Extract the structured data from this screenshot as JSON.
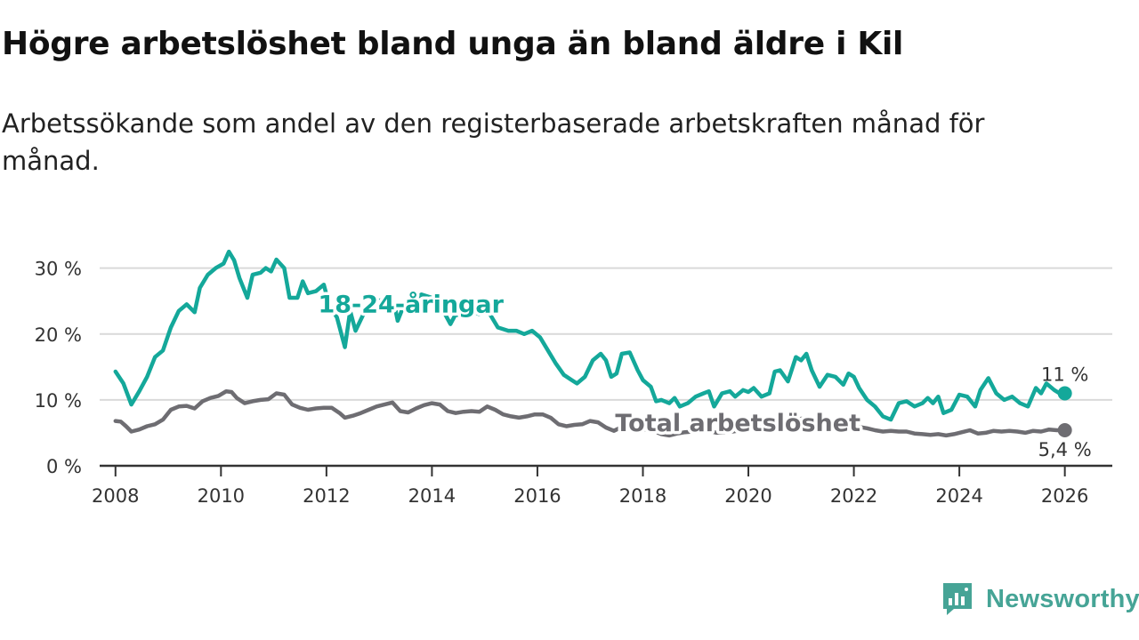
{
  "title": "Högre arbetslöshet bland unga än bland äldre i Kil",
  "subtitle": "Arbetssökande som andel av den registerbaserade arbetskraften månad för månad.",
  "brand": {
    "name": "Newsworthy"
  },
  "colors": {
    "youth": "#14a89a",
    "total": "#6e6d72",
    "grid": "#d9d9d9",
    "axis": "#333333",
    "brand": "#46a496"
  },
  "chart_data": {
    "type": "line",
    "title": "Högre arbetslöshet bland unga än bland äldre i Kil",
    "xlabel": "",
    "ylabel": "",
    "xlim": [
      2007.7,
      2026.9
    ],
    "ylim": [
      0,
      34
    ],
    "x_ticks": [
      {
        "value": 2008,
        "label": "2008"
      },
      {
        "value": 2010,
        "label": "2010"
      },
      {
        "value": 2012,
        "label": "2012"
      },
      {
        "value": 2014,
        "label": "2014"
      },
      {
        "value": 2016,
        "label": "2016"
      },
      {
        "value": 2018,
        "label": "2018"
      },
      {
        "value": 2020,
        "label": "2020"
      },
      {
        "value": 2022,
        "label": "2022"
      },
      {
        "value": 2024,
        "label": "2024"
      },
      {
        "value": 2026,
        "label": "2026"
      }
    ],
    "y_ticks": [
      {
        "value": 0,
        "label": "0 %"
      },
      {
        "value": 10,
        "label": "10 %"
      },
      {
        "value": 20,
        "label": "20 %"
      },
      {
        "value": 30,
        "label": "30 %"
      }
    ],
    "grid": true,
    "series": [
      {
        "name": "18-24-åringar",
        "color": "#14a89a",
        "end_label": "11 %",
        "points": [
          [
            2008.0,
            14.3
          ],
          [
            2008.15,
            12.5
          ],
          [
            2008.3,
            9.3
          ],
          [
            2008.45,
            11.3
          ],
          [
            2008.6,
            13.5
          ],
          [
            2008.75,
            16.5
          ],
          [
            2008.9,
            17.5
          ],
          [
            2009.05,
            21.0
          ],
          [
            2009.2,
            23.5
          ],
          [
            2009.35,
            24.5
          ],
          [
            2009.5,
            23.3
          ],
          [
            2009.6,
            27.0
          ],
          [
            2009.75,
            29.0
          ],
          [
            2009.9,
            30.0
          ],
          [
            2010.05,
            30.7
          ],
          [
            2010.15,
            32.5
          ],
          [
            2010.25,
            31.2
          ],
          [
            2010.35,
            28.5
          ],
          [
            2010.5,
            25.5
          ],
          [
            2010.6,
            29.0
          ],
          [
            2010.75,
            29.3
          ],
          [
            2010.85,
            30.0
          ],
          [
            2010.95,
            29.5
          ],
          [
            2011.05,
            31.3
          ],
          [
            2011.2,
            30.0
          ],
          [
            2011.3,
            25.5
          ],
          [
            2011.45,
            25.5
          ],
          [
            2011.55,
            28.0
          ],
          [
            2011.65,
            26.2
          ],
          [
            2011.8,
            26.5
          ],
          [
            2011.95,
            27.5
          ],
          [
            2012.05,
            24.5
          ],
          [
            2012.2,
            22.5
          ],
          [
            2012.35,
            18.0
          ],
          [
            2012.45,
            23.5
          ],
          [
            2012.55,
            20.5
          ],
          [
            2012.7,
            23.0
          ],
          [
            2012.8,
            24.5
          ],
          [
            2012.95,
            25.0
          ],
          [
            2013.15,
            25.3
          ],
          [
            2013.3,
            24.0
          ],
          [
            2013.35,
            22.0
          ],
          [
            2013.45,
            24.0
          ],
          [
            2013.6,
            25.0
          ],
          [
            2013.8,
            26.0
          ],
          [
            2014.0,
            25.5
          ],
          [
            2014.15,
            25.0
          ],
          [
            2014.25,
            23.0
          ],
          [
            2014.35,
            21.5
          ],
          [
            2014.45,
            23.0
          ],
          [
            2014.6,
            22.5
          ],
          [
            2014.75,
            23.5
          ],
          [
            2014.9,
            23.0
          ],
          [
            2015.0,
            23.3
          ],
          [
            2015.1,
            23.0
          ],
          [
            2015.25,
            21.0
          ],
          [
            2015.45,
            20.5
          ],
          [
            2015.6,
            20.5
          ],
          [
            2015.75,
            20.0
          ],
          [
            2015.9,
            20.5
          ],
          [
            2016.05,
            19.5
          ],
          [
            2016.2,
            17.5
          ],
          [
            2016.35,
            15.5
          ],
          [
            2016.5,
            13.8
          ],
          [
            2016.65,
            13.0
          ],
          [
            2016.75,
            12.5
          ],
          [
            2016.9,
            13.5
          ],
          [
            2017.05,
            16.0
          ],
          [
            2017.2,
            17.0
          ],
          [
            2017.3,
            16.0
          ],
          [
            2017.4,
            13.5
          ],
          [
            2017.5,
            14.0
          ],
          [
            2017.6,
            17.0
          ],
          [
            2017.75,
            17.2
          ],
          [
            2017.9,
            14.5
          ],
          [
            2018.0,
            13.0
          ],
          [
            2018.15,
            12.0
          ],
          [
            2018.25,
            9.8
          ],
          [
            2018.35,
            10.0
          ],
          [
            2018.5,
            9.5
          ],
          [
            2018.6,
            10.3
          ],
          [
            2018.7,
            9.0
          ],
          [
            2018.85,
            9.5
          ],
          [
            2019.0,
            10.5
          ],
          [
            2019.15,
            11.0
          ],
          [
            2019.25,
            11.3
          ],
          [
            2019.35,
            9.0
          ],
          [
            2019.5,
            11.0
          ],
          [
            2019.65,
            11.3
          ],
          [
            2019.75,
            10.5
          ],
          [
            2019.9,
            11.5
          ],
          [
            2020.0,
            11.2
          ],
          [
            2020.1,
            11.8
          ],
          [
            2020.25,
            10.5
          ],
          [
            2020.4,
            11.0
          ],
          [
            2020.5,
            14.3
          ],
          [
            2020.6,
            14.5
          ],
          [
            2020.75,
            12.8
          ],
          [
            2020.9,
            16.5
          ],
          [
            2021.0,
            16.0
          ],
          [
            2021.1,
            17.0
          ],
          [
            2021.2,
            14.5
          ],
          [
            2021.35,
            12.0
          ],
          [
            2021.5,
            13.8
          ],
          [
            2021.65,
            13.5
          ],
          [
            2021.8,
            12.3
          ],
          [
            2021.9,
            14.0
          ],
          [
            2022.0,
            13.5
          ],
          [
            2022.1,
            11.8
          ],
          [
            2022.25,
            10.0
          ],
          [
            2022.4,
            9.0
          ],
          [
            2022.55,
            7.5
          ],
          [
            2022.7,
            7.0
          ],
          [
            2022.85,
            9.5
          ],
          [
            2023.0,
            9.8
          ],
          [
            2023.15,
            9.0
          ],
          [
            2023.3,
            9.5
          ],
          [
            2023.4,
            10.3
          ],
          [
            2023.5,
            9.5
          ],
          [
            2023.6,
            10.5
          ],
          [
            2023.7,
            8.0
          ],
          [
            2023.85,
            8.5
          ],
          [
            2024.0,
            10.8
          ],
          [
            2024.15,
            10.5
          ],
          [
            2024.3,
            9.0
          ],
          [
            2024.4,
            11.5
          ],
          [
            2024.55,
            13.3
          ],
          [
            2024.7,
            11.0
          ],
          [
            2024.85,
            10.0
          ],
          [
            2025.0,
            10.5
          ],
          [
            2025.15,
            9.5
          ],
          [
            2025.3,
            9.0
          ],
          [
            2025.45,
            11.8
          ],
          [
            2025.55,
            11.0
          ],
          [
            2025.65,
            12.5
          ],
          [
            2025.8,
            11.5
          ],
          [
            2025.9,
            11.0
          ],
          [
            2026.0,
            11.0
          ]
        ]
      },
      {
        "name": "Total arbetslöshet",
        "color": "#6e6d72",
        "end_label": "5,4 %",
        "points": [
          [
            2008.0,
            6.8
          ],
          [
            2008.1,
            6.7
          ],
          [
            2008.2,
            6.0
          ],
          [
            2008.3,
            5.2
          ],
          [
            2008.45,
            5.5
          ],
          [
            2008.6,
            6.0
          ],
          [
            2008.75,
            6.3
          ],
          [
            2008.9,
            7.0
          ],
          [
            2009.05,
            8.5
          ],
          [
            2009.2,
            9.0
          ],
          [
            2009.35,
            9.1
          ],
          [
            2009.5,
            8.7
          ],
          [
            2009.65,
            9.8
          ],
          [
            2009.8,
            10.3
          ],
          [
            2009.95,
            10.6
          ],
          [
            2010.1,
            11.3
          ],
          [
            2010.2,
            11.2
          ],
          [
            2010.3,
            10.3
          ],
          [
            2010.45,
            9.5
          ],
          [
            2010.6,
            9.8
          ],
          [
            2010.75,
            10.0
          ],
          [
            2010.9,
            10.1
          ],
          [
            2011.05,
            11.0
          ],
          [
            2011.2,
            10.8
          ],
          [
            2011.35,
            9.3
          ],
          [
            2011.5,
            8.8
          ],
          [
            2011.65,
            8.5
          ],
          [
            2011.8,
            8.7
          ],
          [
            2011.95,
            8.8
          ],
          [
            2012.1,
            8.8
          ],
          [
            2012.25,
            8.0
          ],
          [
            2012.35,
            7.3
          ],
          [
            2012.5,
            7.6
          ],
          [
            2012.65,
            8.0
          ],
          [
            2012.8,
            8.5
          ],
          [
            2012.95,
            9.0
          ],
          [
            2013.1,
            9.3
          ],
          [
            2013.25,
            9.6
          ],
          [
            2013.4,
            8.3
          ],
          [
            2013.55,
            8.1
          ],
          [
            2013.7,
            8.7
          ],
          [
            2013.85,
            9.2
          ],
          [
            2014.0,
            9.5
          ],
          [
            2014.15,
            9.3
          ],
          [
            2014.3,
            8.3
          ],
          [
            2014.45,
            8.0
          ],
          [
            2014.6,
            8.2
          ],
          [
            2014.75,
            8.3
          ],
          [
            2014.9,
            8.2
          ],
          [
            2015.05,
            9.0
          ],
          [
            2015.2,
            8.5
          ],
          [
            2015.35,
            7.8
          ],
          [
            2015.5,
            7.5
          ],
          [
            2015.65,
            7.3
          ],
          [
            2015.8,
            7.5
          ],
          [
            2015.95,
            7.8
          ],
          [
            2016.1,
            7.8
          ],
          [
            2016.25,
            7.3
          ],
          [
            2016.4,
            6.3
          ],
          [
            2016.55,
            6.0
          ],
          [
            2016.7,
            6.2
          ],
          [
            2016.85,
            6.3
          ],
          [
            2017.0,
            6.8
          ],
          [
            2017.15,
            6.6
          ],
          [
            2017.3,
            5.8
          ],
          [
            2017.45,
            5.3
          ],
          [
            2017.6,
            5.9
          ],
          [
            2017.75,
            6.0
          ],
          [
            2017.9,
            5.8
          ],
          [
            2018.05,
            5.5
          ],
          [
            2018.2,
            5.3
          ],
          [
            2018.35,
            4.8
          ],
          [
            2018.5,
            4.6
          ],
          [
            2018.65,
            4.9
          ],
          [
            2018.8,
            5.1
          ],
          [
            2018.95,
            5.2
          ],
          [
            2019.1,
            5.4
          ],
          [
            2019.25,
            5.3
          ],
          [
            2019.4,
            5.0
          ],
          [
            2019.55,
            5.1
          ],
          [
            2019.7,
            5.2
          ],
          [
            2019.85,
            5.4
          ],
          [
            2020.0,
            5.7
          ],
          [
            2020.15,
            6.0
          ],
          [
            2020.3,
            5.8
          ],
          [
            2020.45,
            6.3
          ],
          [
            2020.6,
            6.8
          ],
          [
            2020.75,
            6.6
          ],
          [
            2020.9,
            7.0
          ],
          [
            2021.05,
            7.2
          ],
          [
            2021.2,
            6.8
          ],
          [
            2021.35,
            6.4
          ],
          [
            2021.5,
            6.5
          ],
          [
            2021.65,
            6.2
          ],
          [
            2021.8,
            6.0
          ],
          [
            2021.95,
            6.1
          ],
          [
            2022.1,
            5.9
          ],
          [
            2022.25,
            5.7
          ],
          [
            2022.4,
            5.4
          ],
          [
            2022.55,
            5.2
          ],
          [
            2022.7,
            5.3
          ],
          [
            2022.85,
            5.2
          ],
          [
            2023.0,
            5.2
          ],
          [
            2023.15,
            4.9
          ],
          [
            2023.3,
            4.8
          ],
          [
            2023.45,
            4.7
          ],
          [
            2023.6,
            4.8
          ],
          [
            2023.75,
            4.6
          ],
          [
            2023.9,
            4.8
          ],
          [
            2024.05,
            5.1
          ],
          [
            2024.2,
            5.4
          ],
          [
            2024.35,
            4.9
          ],
          [
            2024.5,
            5.0
          ],
          [
            2024.65,
            5.3
          ],
          [
            2024.8,
            5.2
          ],
          [
            2024.95,
            5.3
          ],
          [
            2025.1,
            5.2
          ],
          [
            2025.25,
            5.0
          ],
          [
            2025.4,
            5.3
          ],
          [
            2025.55,
            5.2
          ],
          [
            2025.7,
            5.5
          ],
          [
            2025.85,
            5.4
          ],
          [
            2026.0,
            5.4
          ]
        ]
      }
    ],
    "annotations": [
      {
        "text": "18-24-åringar",
        "series": "18-24-åringar",
        "x": 2013.6,
        "y": 24.5
      },
      {
        "text": "Total arbetslöshet",
        "series": "Total arbetslöshet",
        "x": 2019.8,
        "y": 6.5
      }
    ]
  }
}
